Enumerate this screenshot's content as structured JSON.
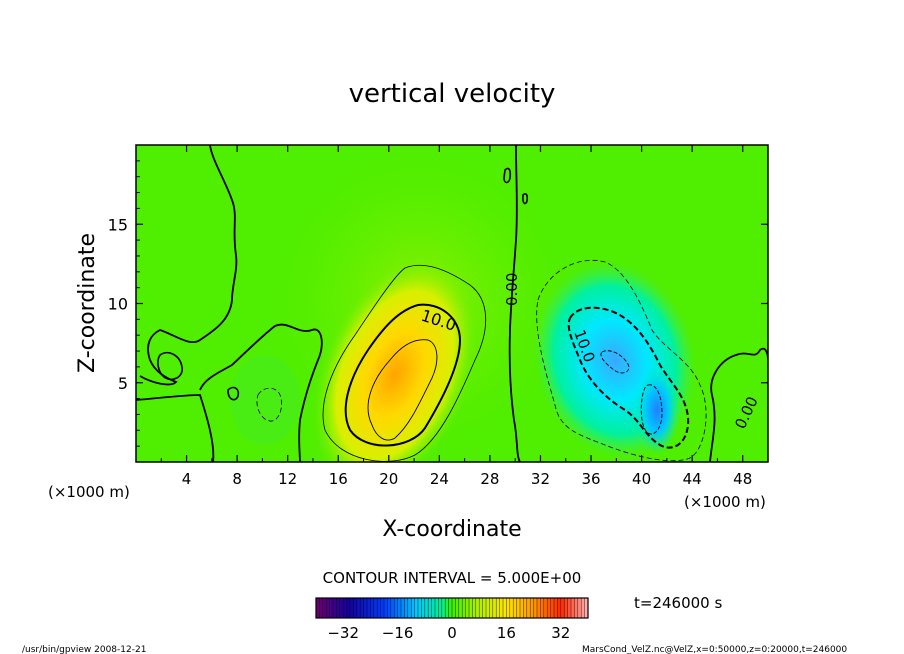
{
  "chart_data": {
    "type": "heatmap",
    "title": "vertical velocity",
    "xlabel": "X-coordinate",
    "ylabel": "Z-coordinate",
    "x_unit_left": "(×1000 m)",
    "x_unit_right": "(×1000 m)",
    "xlim": [
      0,
      50
    ],
    "ylim": [
      0,
      20
    ],
    "x_ticks": [
      4,
      8,
      12,
      16,
      20,
      24,
      28,
      32,
      36,
      40,
      44,
      48
    ],
    "y_ticks": [
      5,
      10,
      15
    ],
    "contour_interval_label": "CONTOUR INTERVAL = 5.000E+00",
    "contour_labels": [
      "10.0",
      "0.00",
      "10.0",
      "0.00"
    ],
    "colorbar": {
      "range": [
        -40,
        40
      ],
      "ticks": [
        -32,
        -16,
        0,
        16,
        32
      ]
    },
    "time_label": "t=246000 s",
    "features": [
      {
        "kind": "updraft",
        "center": [
          21,
          5.5
        ],
        "peak": 15
      },
      {
        "kind": "downdraft",
        "center": [
          38,
          6
        ],
        "peak": -15
      },
      {
        "kind": "downdraft",
        "center": [
          41,
          3.5
        ],
        "peak": -15
      }
    ],
    "grid": false,
    "legend": "none"
  },
  "footer": {
    "left": "/usr/bin/gpview   2008-12-21",
    "right": "MarsCond_VelZ.nc@VelZ,x=0:50000,z=0:20000,t=246000"
  }
}
